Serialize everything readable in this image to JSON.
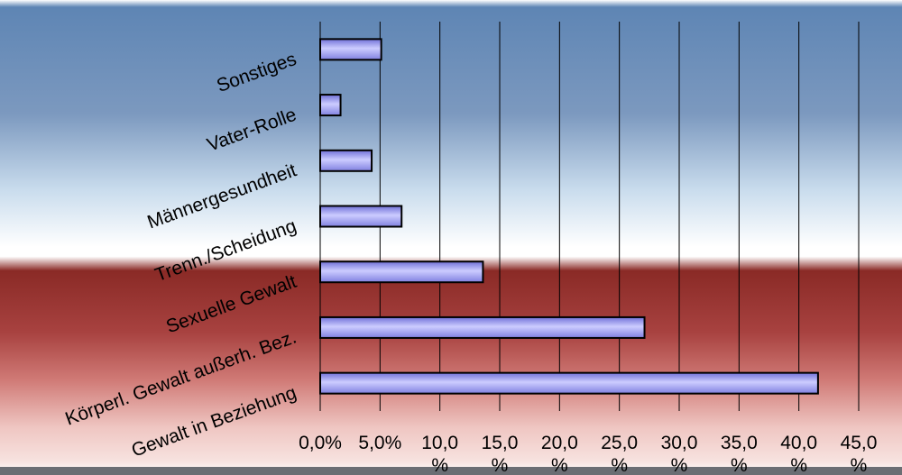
{
  "chart_data": {
    "type": "bar",
    "orientation": "horizontal",
    "categories": [
      "Sonstiges",
      "Vater-Rolle",
      "Männergesundheit",
      "Trenn./Scheidung",
      "Sexuelle Gewalt",
      "Körperl. Gewalt außerh. Bez.",
      "Gewalt in Beziehung"
    ],
    "values": [
      5.1,
      1.7,
      4.3,
      6.8,
      13.6,
      27.1,
      41.6
    ],
    "xlim": [
      0,
      45
    ],
    "x_ticks": [
      0,
      5,
      10,
      15,
      20,
      25,
      30,
      35,
      40,
      45
    ],
    "x_tick_labels": [
      [
        "0,0%"
      ],
      [
        "5,0%"
      ],
      [
        "10,0",
        "%"
      ],
      [
        "15,0",
        "%"
      ],
      [
        "20,0",
        "%"
      ],
      [
        "25,0",
        "%"
      ],
      [
        "30,0",
        "%"
      ],
      [
        "35,0",
        "%"
      ],
      [
        "40,0",
        "%"
      ],
      [
        "45,0",
        "%"
      ]
    ],
    "title": "",
    "xlabel": "",
    "ylabel": "",
    "grid": true,
    "legend": "none",
    "bar_color": "#9999ff",
    "bar_gradient": [
      "#7070d8",
      "#ccccff",
      "#8080e0"
    ],
    "bar_border": "#000000",
    "background_gradient": [
      "#5e85b4",
      "#c9dced",
      "#ffffff",
      "#8a2a26",
      "#b85450",
      "#f2cfcc",
      "#ffffff"
    ],
    "gridline_color": "#000000"
  }
}
